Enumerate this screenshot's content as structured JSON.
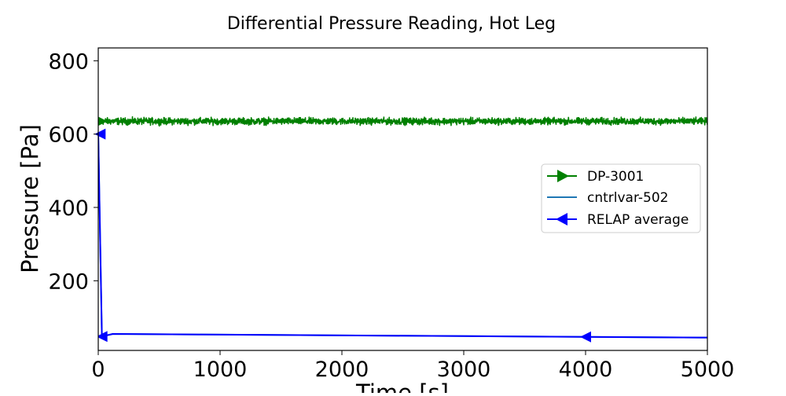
{
  "chart_data": {
    "type": "line",
    "title": "Differential Pressure Reading, Hot Leg",
    "xlabel": "Time [s]",
    "ylabel": "Pressure [Pa]",
    "xlim": [
      0,
      5000
    ],
    "ylim": [
      10,
      835
    ],
    "x_ticks": [
      "0",
      "1000",
      "2000",
      "3000",
      "4000",
      "5000"
    ],
    "y_ticks": [
      "200",
      "400",
      "600",
      "800"
    ],
    "grid": false,
    "legend_position": "center-right",
    "series": [
      {
        "name": "DP-3001",
        "color": "#008000",
        "marker": "right-triangle",
        "mean": 635,
        "noise_amplitude": 10,
        "x_range": [
          0,
          5000
        ],
        "marker_x": [
          30
        ]
      },
      {
        "name": "cntrlvar-502",
        "color": "#1f77b4",
        "marker": "none",
        "x": [
          0,
          30,
          120,
          5000
        ],
        "y": [
          600,
          48,
          55,
          45
        ]
      },
      {
        "name": "RELAP average",
        "color": "#0000ff",
        "marker": "left-triangle",
        "x": [
          0,
          30,
          120,
          1000,
          2000,
          3000,
          4000,
          5000
        ],
        "y": [
          600,
          48,
          55,
          53,
          51,
          49,
          47,
          45
        ],
        "marker_x": [
          30,
          4000
        ]
      }
    ]
  }
}
